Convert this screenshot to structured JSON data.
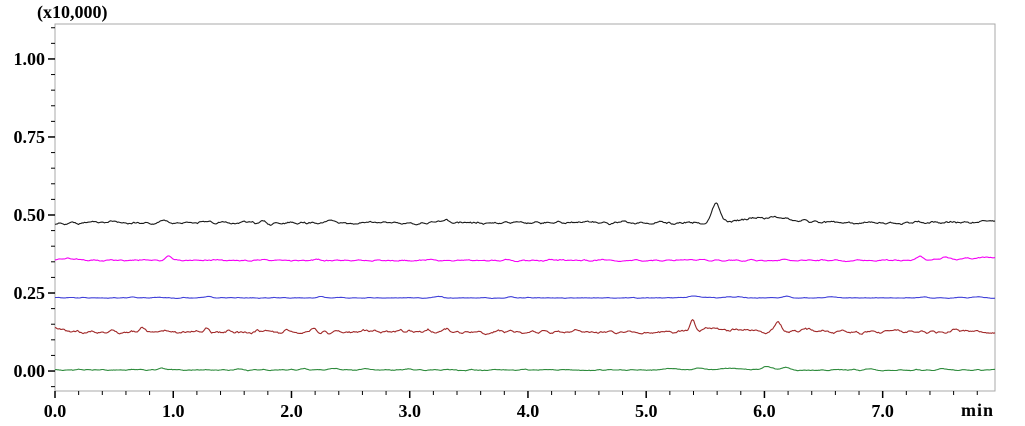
{
  "chart_data": {
    "type": "line",
    "title": "",
    "plot": {
      "background": "#ffffff",
      "frame_color": "#a9a9a9",
      "tick_color": "#000000",
      "grid": false,
      "legend": "none"
    },
    "y_axis": {
      "label": "(x10,000)",
      "range": [
        -0.064,
        1.112
      ],
      "major_ticks": [
        0.0,
        0.25,
        0.5,
        0.75,
        1.0
      ],
      "major_tick_labels": [
        "0.00",
        "0.25",
        "0.50",
        "0.75",
        "1.00"
      ],
      "minor_step": 0.05
    },
    "x_axis": {
      "label": "min",
      "range": [
        0,
        7.95
      ],
      "major_ticks": [
        0,
        1,
        2,
        3,
        4,
        5,
        6,
        7
      ],
      "major_tick_labels": [
        "0.0",
        "1.0",
        "2.0",
        "3.0",
        "4.0",
        "5.0",
        "6.0",
        "7.0"
      ],
      "minor_step": 0.2
    },
    "series": [
      {
        "name": "green",
        "color": "#2E8B3C",
        "baseline": 0.0035,
        "noise": 0.0018,
        "peaks": [
          {
            "t": 0.9,
            "h": 0.005,
            "w": 0.025
          },
          {
            "t": 1.55,
            "h": 0.003,
            "w": 0.03
          },
          {
            "t": 2.1,
            "h": 0.005,
            "w": 0.03
          },
          {
            "t": 2.35,
            "h": 0.004,
            "w": 0.03
          },
          {
            "t": 2.62,
            "h": 0.004,
            "w": 0.03
          },
          {
            "t": 3.0,
            "h": 0.003,
            "w": 0.03
          },
          {
            "t": 5.2,
            "h": 0.004,
            "w": 0.05
          },
          {
            "t": 5.45,
            "h": 0.006,
            "w": 0.04
          },
          {
            "t": 5.7,
            "h": 0.006,
            "w": 0.12
          },
          {
            "t": 6.03,
            "h": 0.011,
            "w": 0.045
          },
          {
            "t": 6.18,
            "h": 0.007,
            "w": 0.04
          },
          {
            "t": 6.9,
            "h": 0.003,
            "w": 0.03
          },
          {
            "t": 7.5,
            "h": 0.004,
            "w": 0.03
          }
        ]
      },
      {
        "name": "dark-red",
        "color": "#A02828",
        "baseline": 0.1245,
        "noise": 0.005,
        "peaks": [
          {
            "t": 0.04,
            "h": 0.009,
            "w": 0.07
          },
          {
            "t": 0.73,
            "h": 0.013,
            "w": 0.022
          },
          {
            "t": 0.95,
            "h": 0.008,
            "w": 0.02
          },
          {
            "t": 1.29,
            "h": 0.01,
            "w": 0.02
          },
          {
            "t": 1.47,
            "h": 0.007,
            "w": 0.02
          },
          {
            "t": 1.72,
            "h": 0.007,
            "w": 0.02
          },
          {
            "t": 1.95,
            "h": 0.011,
            "w": 0.02
          },
          {
            "t": 2.18,
            "h": 0.008,
            "w": 0.02
          },
          {
            "t": 2.6,
            "h": 0.006,
            "w": 0.02
          },
          {
            "t": 3.15,
            "h": 0.007,
            "w": 0.02
          },
          {
            "t": 3.31,
            "h": 0.007,
            "w": 0.02
          },
          {
            "t": 3.59,
            "h": 0.006,
            "w": 0.02
          },
          {
            "t": 3.87,
            "h": 0.007,
            "w": 0.02
          },
          {
            "t": 4.4,
            "h": 0.006,
            "w": 0.02
          },
          {
            "t": 4.54,
            "h": 0.006,
            "w": 0.02
          },
          {
            "t": 5.39,
            "h": 0.045,
            "w": 0.02
          },
          {
            "t": 5.55,
            "h": 0.016,
            "w": 0.05
          },
          {
            "t": 5.78,
            "h": 0.01,
            "w": 0.09
          },
          {
            "t": 6.11,
            "h": 0.033,
            "w": 0.025
          },
          {
            "t": 6.35,
            "h": 0.012,
            "w": 0.04
          },
          {
            "t": 6.65,
            "h": 0.007,
            "w": 0.03
          },
          {
            "t": 7.1,
            "h": 0.006,
            "w": 0.03
          },
          {
            "t": 7.6,
            "h": 0.006,
            "w": 0.03
          }
        ]
      },
      {
        "name": "blue",
        "color": "#4040D8",
        "baseline": 0.2345,
        "noise": 0.0013,
        "peaks": [
          {
            "t": 0.66,
            "h": 0.0045,
            "w": 0.025
          },
          {
            "t": 1.29,
            "h": 0.0045,
            "w": 0.025
          },
          {
            "t": 2.25,
            "h": 0.0035,
            "w": 0.025
          },
          {
            "t": 3.24,
            "h": 0.005,
            "w": 0.03
          },
          {
            "t": 3.85,
            "h": 0.003,
            "w": 0.025
          },
          {
            "t": 5.41,
            "h": 0.007,
            "w": 0.04
          },
          {
            "t": 5.7,
            "h": 0.0045,
            "w": 0.03
          },
          {
            "t": 5.78,
            "h": 0.004,
            "w": 0.025
          },
          {
            "t": 6.2,
            "h": 0.0045,
            "w": 0.03
          },
          {
            "t": 6.55,
            "h": 0.0035,
            "w": 0.03
          },
          {
            "t": 7.35,
            "h": 0.003,
            "w": 0.03
          },
          {
            "t": 7.8,
            "h": 0.0035,
            "w": 0.03
          }
        ]
      },
      {
        "name": "magenta",
        "color": "#F500F5",
        "baseline": 0.3545,
        "noise": 0.0025,
        "peaks": [
          {
            "t": 0.05,
            "h": 0.006,
            "w": 0.08
          },
          {
            "t": 0.75,
            "h": 0.004,
            "w": 0.03
          },
          {
            "t": 0.96,
            "h": 0.017,
            "w": 0.022
          },
          {
            "t": 1.4,
            "h": 0.003,
            "w": 0.03
          },
          {
            "t": 2.2,
            "h": 0.003,
            "w": 0.04
          },
          {
            "t": 5.45,
            "h": 0.003,
            "w": 0.04
          },
          {
            "t": 7.32,
            "h": 0.012,
            "w": 0.025
          },
          {
            "t": 7.52,
            "h": 0.007,
            "w": 0.03
          },
          {
            "t": 7.95,
            "h": 0.01,
            "w": 0.25
          }
        ]
      },
      {
        "name": "black",
        "color": "#1A1A1A",
        "baseline": 0.4755,
        "noise": 0.0045,
        "peaks": [
          {
            "t": 0.35,
            "h": 0.005,
            "w": 0.03
          },
          {
            "t": 0.95,
            "h": 0.006,
            "w": 0.03
          },
          {
            "t": 1.62,
            "h": 0.005,
            "w": 0.03
          },
          {
            "t": 2.32,
            "h": 0.006,
            "w": 0.04
          },
          {
            "t": 3.3,
            "h": 0.005,
            "w": 0.04
          },
          {
            "t": 5.59,
            "h": 0.062,
            "w": 0.035
          },
          {
            "t": 5.95,
            "h": 0.013,
            "w": 0.12
          },
          {
            "t": 6.12,
            "h": 0.012,
            "w": 0.07
          },
          {
            "t": 6.3,
            "h": 0.007,
            "w": 0.06
          },
          {
            "t": 7.95,
            "h": 0.007,
            "w": 0.15
          }
        ]
      }
    ]
  }
}
